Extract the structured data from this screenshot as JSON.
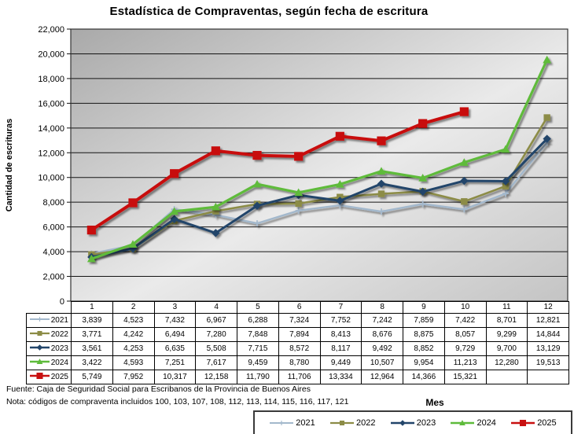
{
  "chart_data": {
    "type": "line",
    "title": "Estadística de Compraventas, según fecha de escritura",
    "xlabel": "Mes",
    "ylabel": "Cantidad de escrituras",
    "ylim": [
      0,
      22000
    ],
    "ytick_step": 2000,
    "grid": true,
    "legend_position": "bottom",
    "plot_bg_gradient": [
      "#A9A9A9",
      "#EAEAEA",
      "#C4C4C4"
    ],
    "categories": [
      "1",
      "2",
      "3",
      "4",
      "5",
      "6",
      "7",
      "8",
      "9",
      "10",
      "11",
      "12"
    ],
    "series": [
      {
        "name": "2021",
        "color": "#A3B8CC",
        "marker": "plus",
        "values": [
          3839,
          4523,
          7432,
          6967,
          6288,
          7324,
          7752,
          7242,
          7859,
          7422,
          8701,
          12821
        ]
      },
      {
        "name": "2022",
        "color": "#8C8C46",
        "marker": "square",
        "values": [
          3771,
          4242,
          6494,
          7280,
          7848,
          7894,
          8413,
          8676,
          8875,
          8057,
          9299,
          14844
        ]
      },
      {
        "name": "2023",
        "color": "#22456A",
        "marker": "diamond",
        "values": [
          3561,
          4253,
          6635,
          5508,
          7715,
          8572,
          8117,
          9492,
          8852,
          9729,
          9700,
          13129
        ]
      },
      {
        "name": "2024",
        "color": "#5EBB3B",
        "marker": "triangle",
        "values": [
          3422,
          4593,
          7251,
          7617,
          9459,
          8780,
          9449,
          10507,
          9954,
          11213,
          12280,
          19513
        ]
      },
      {
        "name": "2025",
        "color": "#C81010",
        "marker": "square-large",
        "values": [
          5749,
          7952,
          10317,
          12158,
          11790,
          11706,
          13334,
          12964,
          14366,
          15321,
          null,
          null
        ]
      }
    ]
  },
  "footer": {
    "fuente": "Fuente: Caja de Seguridad Social para Escribanos de la Provincia de Buenos Aires",
    "nota": "Nota: códigos de compraventa incluidos 100, 103, 107, 108, 112, 113, 114, 115, 116, 117, 121"
  }
}
